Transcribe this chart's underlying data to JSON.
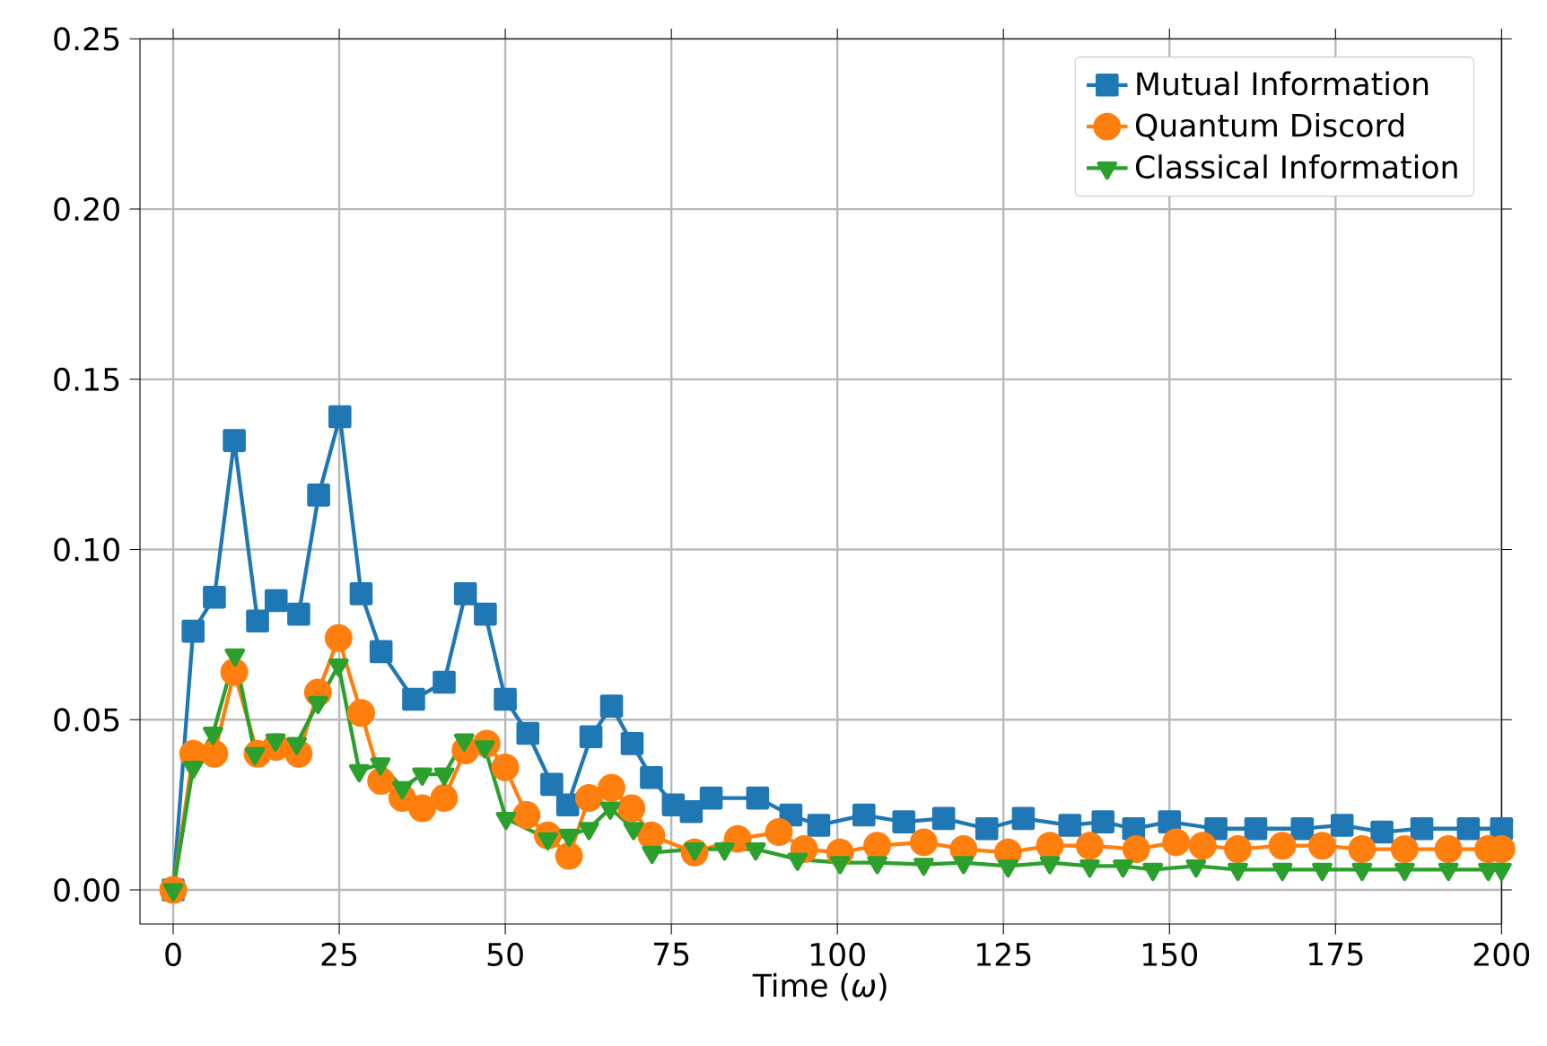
{
  "chart_data": {
    "type": "line",
    "xlabel": "Time (*ω*)",
    "xlim": [
      -5,
      200
    ],
    "ylim": [
      -0.01,
      0.25
    ],
    "xticks": [
      0,
      25,
      50,
      75,
      100,
      125,
      150,
      175,
      200
    ],
    "yticks": [
      {
        "value": 0,
        "label": "0.00"
      },
      {
        "value": 0.05,
        "label": "0.05"
      },
      {
        "value": 0.1,
        "label": "0.10"
      },
      {
        "value": 0.15,
        "label": "0.15"
      },
      {
        "value": 0.2,
        "label": "0.20"
      },
      {
        "value": 0.25,
        "label": "0.25"
      }
    ],
    "grid": true,
    "legend": "top right",
    "line_style": "solid",
    "series": [
      {
        "name": "Mutual Information",
        "color": "#1f77b4",
        "marker": "square",
        "x": [
          0,
          3,
          6.2,
          9.2,
          12.7,
          15.5,
          18.9,
          21.9,
          25.1,
          28.3,
          31.3,
          36.2,
          40.8,
          44,
          47,
          50,
          53.4,
          57,
          59.4,
          62.9,
          66,
          69.1,
          72,
          75.3,
          78,
          81,
          88,
          93,
          97.2,
          104,
          110,
          116,
          122.5,
          128,
          135,
          140,
          144.6,
          150,
          157,
          163,
          170,
          176,
          182,
          188,
          195,
          200
        ],
        "values": [
          0,
          0.076,
          0.086,
          0.132,
          0.079,
          0.085,
          0.081,
          0.116,
          0.139,
          0.087,
          0.07,
          0.056,
          0.061,
          0.087,
          0.081,
          0.056,
          0.046,
          0.031,
          0.025,
          0.045,
          0.054,
          0.043,
          0.033,
          0.025,
          0.023,
          0.027,
          0.027,
          0.022,
          0.019,
          0.022,
          0.02,
          0.021,
          0.018,
          0.021,
          0.019,
          0.02,
          0.018,
          0.02,
          0.018,
          0.018,
          0.018,
          0.019,
          0.017,
          0.018,
          0.018,
          0.018
        ]
      },
      {
        "name": "Quantum Discord",
        "color": "#ff7f0e",
        "marker": "circle",
        "x": [
          0,
          3,
          6.2,
          9.2,
          12.7,
          15.5,
          18.9,
          21.8,
          24.9,
          28.3,
          31.3,
          34.5,
          37.5,
          40.8,
          44,
          47.2,
          50,
          53.2,
          56.4,
          59.6,
          62.6,
          66,
          69,
          72,
          78.5,
          85,
          91.2,
          95,
          100.4,
          106,
          113,
          119,
          125.7,
          132,
          138,
          145,
          151,
          155,
          160.3,
          167,
          173,
          179,
          185.4,
          192,
          198,
          200
        ],
        "values": [
          0,
          0.04,
          0.04,
          0.064,
          0.04,
          0.042,
          0.04,
          0.058,
          0.074,
          0.052,
          0.032,
          0.027,
          0.024,
          0.027,
          0.041,
          0.043,
          0.036,
          0.022,
          0.016,
          0.01,
          0.027,
          0.03,
          0.024,
          0.016,
          0.011,
          0.015,
          0.017,
          0.012,
          0.011,
          0.013,
          0.014,
          0.012,
          0.011,
          0.013,
          0.013,
          0.012,
          0.014,
          0.013,
          0.012,
          0.013,
          0.013,
          0.012,
          0.012,
          0.012,
          0.012,
          0.012
        ]
      },
      {
        "name": "Classical Information",
        "color": "#2ca02c",
        "marker": "triangle",
        "x": [
          0,
          3,
          6,
          9.3,
          12.3,
          15.4,
          18.6,
          21.8,
          24.9,
          28,
          31.2,
          34.5,
          37.5,
          40.8,
          43.8,
          46.9,
          50.1,
          56.4,
          59.6,
          62.6,
          65.8,
          69.3,
          72.1,
          78.5,
          83,
          87.7,
          94,
          100.4,
          106,
          113,
          119,
          125.7,
          132,
          138,
          143,
          147.5,
          154,
          160.3,
          167,
          173,
          179,
          185.4,
          192,
          198,
          200
        ],
        "values": [
          0,
          0.036,
          0.046,
          0.069,
          0.04,
          0.044,
          0.043,
          0.055,
          0.066,
          0.035,
          0.037,
          0.03,
          0.034,
          0.034,
          0.044,
          0.042,
          0.021,
          0.015,
          0.016,
          0.018,
          0.024,
          0.018,
          0.011,
          0.012,
          0.012,
          0.012,
          0.009,
          0.008,
          0.008,
          0.0075,
          0.008,
          0.007,
          0.008,
          0.007,
          0.007,
          0.006,
          0.007,
          0.006,
          0.006,
          0.006,
          0.006,
          0.006,
          0.006,
          0.006,
          0.006
        ]
      }
    ]
  }
}
